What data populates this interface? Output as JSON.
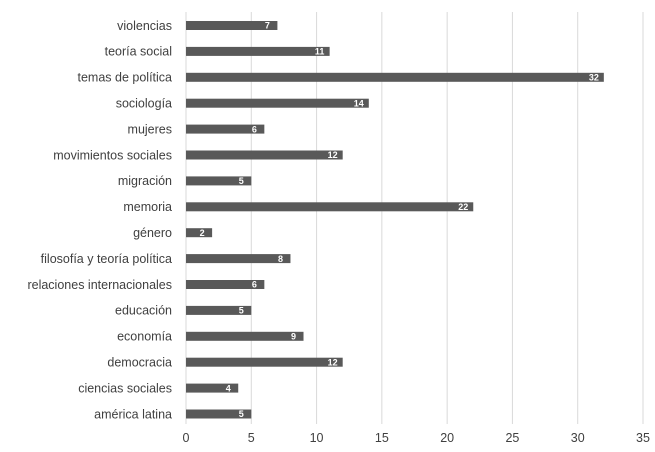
{
  "chart_data": {
    "type": "bar",
    "orientation": "horizontal",
    "categories": [
      "violencias",
      "teoría social",
      "temas de política",
      "sociología",
      "mujeres",
      "movimientos sociales",
      "migración",
      "memoria",
      "género",
      "filosofía y teoría política",
      "relaciones internacionales",
      "educación",
      "economía",
      "democracia",
      "ciencias sociales",
      "américa latina"
    ],
    "values": [
      7,
      11,
      32,
      14,
      6,
      12,
      5,
      22,
      2,
      8,
      6,
      5,
      9,
      12,
      4,
      5
    ],
    "xlim": [
      0,
      35
    ],
    "xticks": [
      "0",
      "5",
      "10",
      "15",
      "20",
      "25",
      "30",
      "35"
    ],
    "grid": "vertical",
    "data_labels": "inside-end",
    "bar_color": "#595959"
  }
}
